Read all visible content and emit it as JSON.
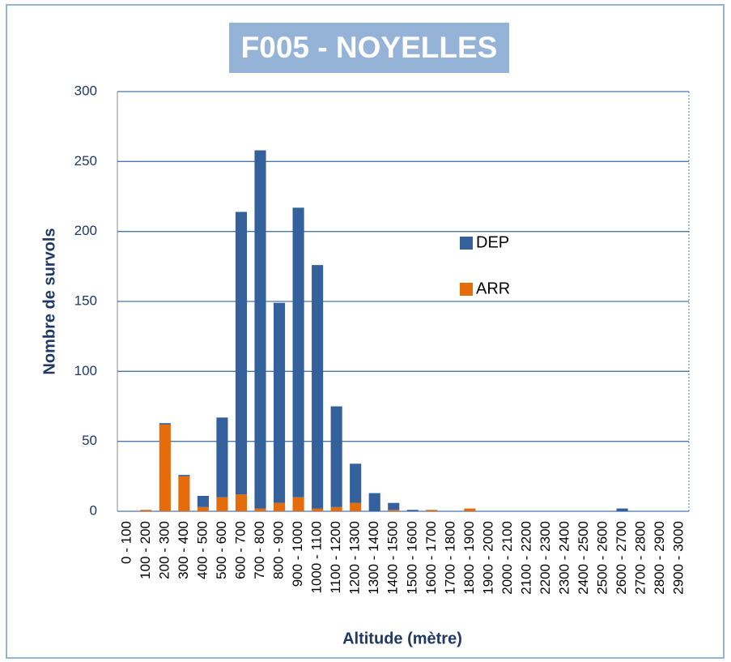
{
  "chart_data": {
    "type": "stacked_bar",
    "title": "F005 - NOYELLES",
    "xlabel": "Altitude (mètre)",
    "ylabel": "Nombre de survols",
    "categories": [
      "0 - 100",
      "100 - 200",
      "200 - 300",
      "300 - 400",
      "400 - 500",
      "500 - 600",
      "600 - 700",
      "700 - 800",
      "800 - 900",
      "900 - 1000",
      "1000 - 1100",
      "1100 - 1200",
      "1200 - 1300",
      "1300 - 1400",
      "1400 - 1500",
      "1500 - 1600",
      "1600 - 1700",
      "1700 - 1800",
      "1800 - 1900",
      "1900 - 2000",
      "2000 - 2100",
      "2100 - 2200",
      "2200 - 2300",
      "2300 - 2400",
      "2400 - 2500",
      "2500 - 2600",
      "2600 - 2700",
      "2700 - 2800",
      "2800 - 2900",
      "2900 - 3000"
    ],
    "series": [
      {
        "name": "DEP",
        "color": "#34619c",
        "values": [
          0,
          0,
          1,
          1,
          8,
          57,
          202,
          256,
          143,
          207,
          174,
          72,
          28,
          13,
          5,
          1,
          0,
          0,
          0,
          0,
          0,
          0,
          0,
          0,
          0,
          0,
          2,
          0,
          0,
          0
        ]
      },
      {
        "name": "ARR",
        "color": "#e46c0a",
        "values": [
          0,
          1,
          62,
          25,
          3,
          10,
          12,
          2,
          6,
          10,
          2,
          3,
          6,
          0,
          1,
          0,
          1,
          0,
          2,
          0,
          0,
          0,
          0,
          0,
          0,
          0,
          0,
          0,
          0,
          0
        ]
      }
    ],
    "ylim": [
      0,
      300
    ],
    "yticks": [
      0,
      50,
      100,
      150,
      200,
      250,
      300
    ],
    "grid": true
  }
}
